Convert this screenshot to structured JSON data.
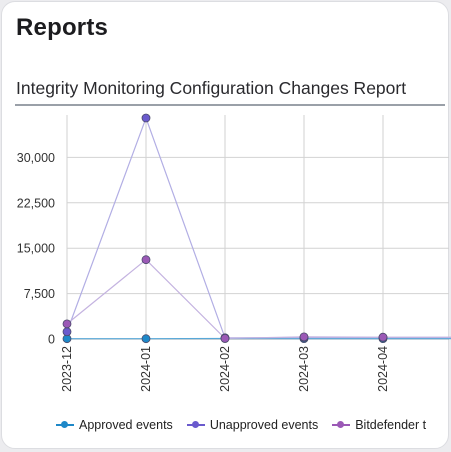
{
  "card": {
    "title": "Reports",
    "report_title": "Integrity Monitoring Configuration Changes Report"
  },
  "chart_data": {
    "type": "line",
    "categories": [
      "2023-12",
      "2024-01",
      "2024-02",
      "2024-03",
      "2024-04"
    ],
    "y_ticks": [
      "0",
      "7,500",
      "15,000",
      "22,500",
      "30,000"
    ],
    "y_tick_values": [
      0,
      7500,
      15000,
      22500,
      30000
    ],
    "ylim": [
      0,
      37000
    ],
    "grid": true,
    "legend_position": "bottom",
    "series": [
      {
        "name": "Approved events",
        "color": "#1e88c8",
        "values": [
          50,
          50,
          80,
          60,
          60
        ]
      },
      {
        "name": "Unapproved events",
        "color": "#6a5acd",
        "values": [
          1200,
          36500,
          200,
          250,
          250
        ]
      },
      {
        "name": "Bitdefender t",
        "color": "#9b59b6",
        "values": [
          2500,
          13100,
          100,
          350,
          300
        ]
      }
    ]
  }
}
